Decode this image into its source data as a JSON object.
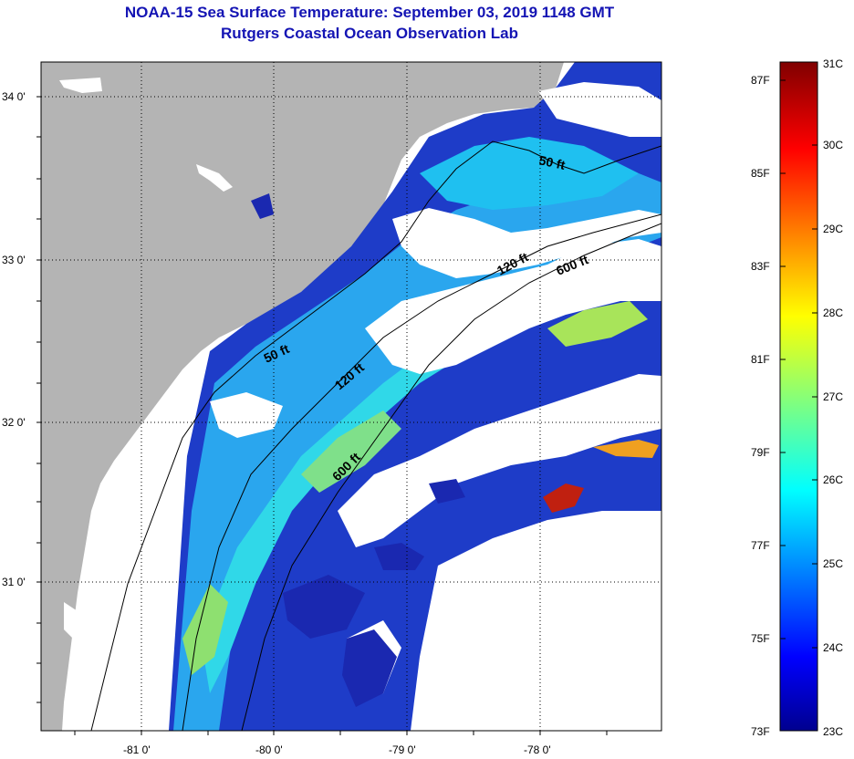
{
  "title": {
    "line1": "NOAA-15 Sea Surface Temperature:  September 03, 2019 1148 GMT",
    "line2": "Rutgers Coastal Ocean Observation Lab"
  },
  "axes": {
    "lat_labels": [
      "34 0'",
      "33 0'",
      "32 0'",
      "31 0'"
    ],
    "lon_labels": [
      "-81 0'",
      "-80 0'",
      "-79 0'",
      "-78 0'"
    ]
  },
  "contours": {
    "c50": "50 ft",
    "c120": "120 ft",
    "c600": "600 ft"
  },
  "colorbar": {
    "fahrenheit": [
      "87F",
      "85F",
      "83F",
      "81F",
      "79F",
      "77F",
      "75F",
      "73F"
    ],
    "celsius": [
      "31C",
      "30C",
      "29C",
      "28C",
      "27C",
      "26C",
      "25C",
      "24C",
      "23C"
    ],
    "min_c": 23,
    "max_c": 31
  },
  "colors": {
    "land": "#b4b4b4",
    "title": "#1414b4"
  }
}
